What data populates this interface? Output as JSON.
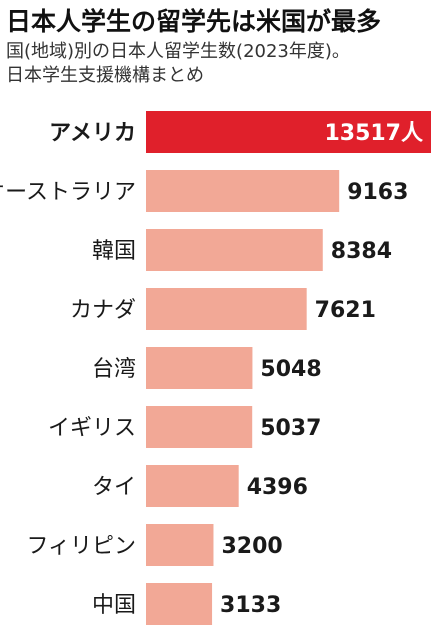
{
  "title": "日本人学生の留学先は米国が最多",
  "subtitle": "国(地域)別の日本人留学生数(2023年度)。\n日本学生支援機構まとめ",
  "colors": {
    "highlight": "#e0202b",
    "bar": "#f2a896",
    "text": "#1a1a1a",
    "highlight_label": "#ffffff"
  },
  "chart_data": {
    "type": "bar",
    "orientation": "horizontal",
    "title": "日本人学生の留学先は米国が最多",
    "subtitle": "国(地域)別の日本人留学生数(2023年度)。日本学生支援機構まとめ",
    "categories": [
      "アメリカ",
      "オーストラリア",
      "韓国",
      "カナダ",
      "台湾",
      "イギリス",
      "タイ",
      "フィリピン",
      "中国"
    ],
    "values": [
      13517,
      9163,
      8384,
      7621,
      5048,
      5037,
      4396,
      3200,
      3133
    ],
    "value_labels": [
      "13517人",
      "9163",
      "8384",
      "7621",
      "5048",
      "5037",
      "4396",
      "3200",
      "3133"
    ],
    "highlight_index": 0,
    "xlim": [
      0,
      13517
    ],
    "grid": false,
    "legend": "none"
  }
}
